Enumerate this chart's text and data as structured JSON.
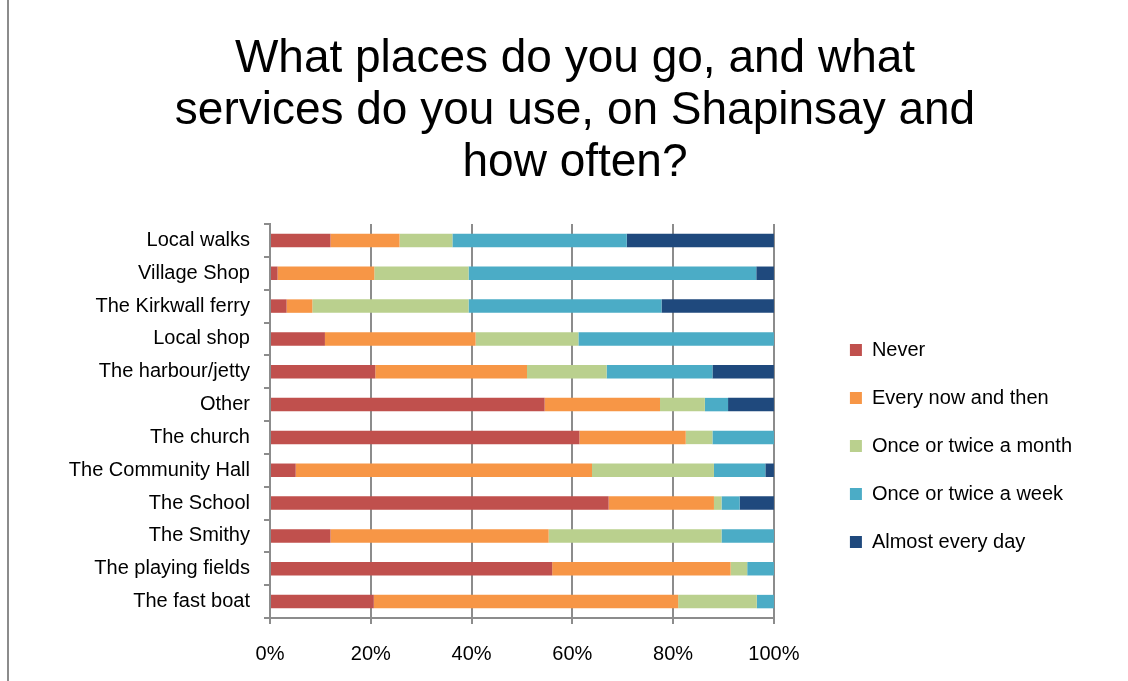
{
  "chart_data": {
    "type": "bar",
    "title": "What places do you go, and what services do you use, on Shapinsay and how often?",
    "orientation": "horizontal",
    "stacked": true,
    "categories": [
      "Local walks",
      "Village Shop",
      "The Kirkwall ferry",
      "Local shop",
      "The harbour/jetty",
      "Other",
      "The church",
      "The Community Hall",
      "The School",
      "The Smithy",
      "The playing fields",
      "The fast boat"
    ],
    "series": [
      {
        "name": "Never",
        "color": "#c0504d",
        "values": [
          12.0,
          1.5,
          3.3,
          10.9,
          20.9,
          54.5,
          61.4,
          5.1,
          67.2,
          12.0,
          56.0,
          20.6
        ]
      },
      {
        "name": "Every now and then",
        "color": "#f79646",
        "values": [
          13.7,
          19.2,
          5.1,
          29.9,
          30.1,
          22.9,
          21.1,
          58.8,
          20.9,
          43.3,
          35.4,
          60.4
        ]
      },
      {
        "name": "Once or twice a month",
        "color": "#bad08e",
        "values": [
          10.5,
          18.7,
          31.0,
          20.4,
          15.8,
          8.9,
          5.3,
          24.2,
          1.5,
          34.3,
          3.3,
          15.6
        ]
      },
      {
        "name": "Once or twice a week",
        "color": "#4bacc6",
        "values": [
          34.6,
          57.1,
          38.3,
          38.8,
          21.0,
          4.6,
          12.2,
          10.2,
          3.6,
          10.4,
          5.3,
          3.4
        ]
      },
      {
        "name": "Almost every day",
        "color": "#1f497d",
        "values": [
          29.2,
          3.5,
          22.3,
          0,
          12.2,
          9.1,
          0,
          1.7,
          6.8,
          0,
          0,
          0
        ]
      }
    ],
    "xlim": [
      0,
      100
    ],
    "xticks": [
      {
        "value": 0,
        "label": "0%"
      },
      {
        "value": 20,
        "label": "20%"
      },
      {
        "value": 40,
        "label": "40%"
      },
      {
        "value": 60,
        "label": "60%"
      },
      {
        "value": 80,
        "label": "80%"
      },
      {
        "value": 100,
        "label": "100%"
      }
    ],
    "grid": "x",
    "legend": "right"
  }
}
